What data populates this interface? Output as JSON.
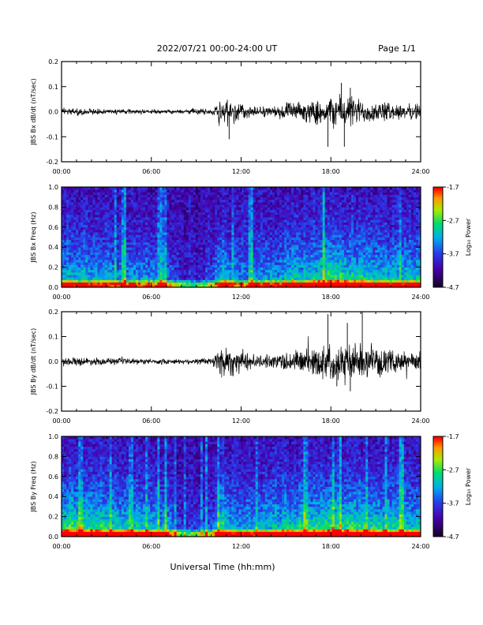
{
  "header": {
    "title": "2022/07/21  00:00-24:00 UT",
    "page": "Page 1/1"
  },
  "footer": {
    "xlabel": "Universal Time (hh:mm)"
  },
  "chart_data": [
    {
      "type": "line",
      "ylabel": "JBS Bx dB/dt (nT/sec)",
      "xlim": [
        0,
        24
      ],
      "ylim": [
        -0.2,
        0.2
      ],
      "xticks": [
        "00:00",
        "06:00",
        "12:00",
        "18:00",
        "24:00"
      ],
      "yticks": [
        "-0.2",
        "-0.1",
        "0.0",
        "0.1",
        "0.2"
      ],
      "envelope": {
        "time_h": [
          0,
          2,
          4,
          6,
          8,
          9,
          10,
          10.5,
          11,
          12,
          13,
          14,
          15,
          16,
          17,
          18,
          19,
          20,
          21,
          22,
          23,
          24
        ],
        "amplitude": [
          0.015,
          0.012,
          0.01,
          0.008,
          0.008,
          0.012,
          0.01,
          0.05,
          0.06,
          0.035,
          0.02,
          0.02,
          0.035,
          0.035,
          0.045,
          0.06,
          0.07,
          0.05,
          0.04,
          0.035,
          0.03,
          0.03
        ]
      },
      "peaks": [
        {
          "t": 11.2,
          "v": -0.11
        },
        {
          "t": 17.8,
          "v": -0.14
        },
        {
          "t": 18.7,
          "v": 0.115
        },
        {
          "t": 18.9,
          "v": -0.14
        },
        {
          "t": 19.3,
          "v": 0.095
        }
      ]
    },
    {
      "type": "heatmap",
      "ylabel": "JBS Bx Freq (Hz)",
      "xlim": [
        0,
        24
      ],
      "ylim": [
        0.0,
        1.0
      ],
      "xticks": [
        "00:00",
        "06:00",
        "12:00",
        "18:00",
        "24:00"
      ],
      "yticks": [
        "0.0",
        "0.2",
        "0.4",
        "0.6",
        "0.8",
        "1.0"
      ],
      "colorbar": {
        "label": "Log₁₀ Power",
        "ticks": [
          "-1.7",
          "-2.7",
          "-3.7",
          "-4.7"
        ],
        "range": [
          -4.7,
          -1.7
        ]
      },
      "activity_h": [
        0,
        2,
        4,
        6,
        7.3,
        8,
        9,
        10,
        10.8,
        11.5,
        12,
        13,
        14,
        15,
        16,
        17,
        18,
        19,
        20,
        21,
        22,
        24
      ],
      "activity_v": [
        0.45,
        0.42,
        0.38,
        0.35,
        0.28,
        0.12,
        0.12,
        0.2,
        0.55,
        0.3,
        0.3,
        0.35,
        0.38,
        0.45,
        0.48,
        0.5,
        0.62,
        0.55,
        0.52,
        0.48,
        0.45,
        0.45
      ]
    },
    {
      "type": "line",
      "ylabel": "JBS By dB/dt (nT/sec)",
      "xlim": [
        0,
        24
      ],
      "ylim": [
        -0.2,
        0.2
      ],
      "xticks": [
        "00:00",
        "06:00",
        "12:00",
        "18:00",
        "24:00"
      ],
      "yticks": [
        "-0.2",
        "-0.1",
        "0.0",
        "0.1",
        "0.2"
      ],
      "envelope": {
        "time_h": [
          0,
          2,
          4,
          6,
          8,
          9,
          10,
          10.5,
          11,
          12,
          13,
          14,
          15,
          16,
          17,
          18,
          19,
          20,
          21,
          22,
          23,
          24
        ],
        "amplitude": [
          0.018,
          0.015,
          0.012,
          0.01,
          0.01,
          0.012,
          0.015,
          0.06,
          0.07,
          0.045,
          0.025,
          0.025,
          0.04,
          0.05,
          0.06,
          0.075,
          0.07,
          0.07,
          0.05,
          0.045,
          0.04,
          0.035
        ]
      },
      "peaks": [
        {
          "t": 17.8,
          "v": 0.19
        },
        {
          "t": 19.1,
          "v": 0.155
        },
        {
          "t": 20.1,
          "v": 0.2
        },
        {
          "t": 19.3,
          "v": -0.12
        },
        {
          "t": 18.4,
          "v": -0.1
        }
      ]
    },
    {
      "type": "heatmap",
      "ylabel": "JBS By Freq (Hz)",
      "xlim": [
        0,
        24
      ],
      "ylim": [
        0.0,
        1.0
      ],
      "xticks": [
        "00:00",
        "06:00",
        "12:00",
        "18:00",
        "24:00"
      ],
      "yticks": [
        "0.0",
        "0.2",
        "0.4",
        "0.6",
        "0.8",
        "1.0"
      ],
      "colorbar": {
        "label": "Log₁₀ Power",
        "ticks": [
          "-1.7",
          "-2.7",
          "-3.7",
          "-4.7"
        ],
        "range": [
          -4.7,
          -1.7
        ]
      },
      "activity_h": [
        0,
        1,
        2,
        3,
        4,
        6,
        7.3,
        8,
        9,
        10,
        10.8,
        11.5,
        12,
        13,
        14,
        15,
        16,
        17,
        18,
        19,
        20,
        21,
        22,
        24
      ],
      "activity_v": [
        0.6,
        0.62,
        0.58,
        0.55,
        0.52,
        0.48,
        0.35,
        0.15,
        0.15,
        0.25,
        0.6,
        0.4,
        0.38,
        0.42,
        0.45,
        0.5,
        0.52,
        0.55,
        0.65,
        0.6,
        0.58,
        0.55,
        0.5,
        0.5
      ]
    }
  ]
}
